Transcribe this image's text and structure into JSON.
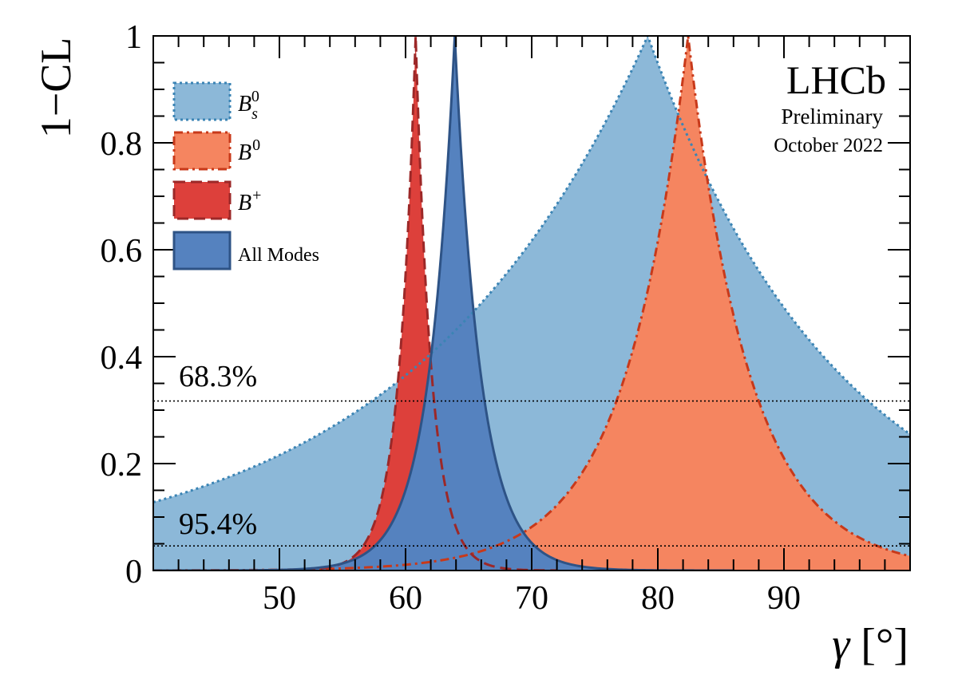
{
  "chart_data": {
    "type": "area",
    "title": "",
    "xlabel_symbol": "γ",
    "xlabel_unit": "[°]",
    "ylabel": "1−CL",
    "xlim": [
      40,
      100
    ],
    "ylim": [
      0,
      1
    ],
    "xticks": [
      50,
      60,
      70,
      80,
      90
    ],
    "yticks": [
      0,
      0.2,
      0.4,
      0.6,
      0.8,
      1
    ],
    "ytick_labels": [
      "0",
      "0.2",
      "0.4",
      "0.6",
      "0.8",
      "1"
    ],
    "xtick_labels": [
      "50",
      "60",
      "70",
      "80",
      "90"
    ],
    "reference_lines": [
      {
        "label": "68.3%",
        "y": 0.317
      },
      {
        "label": "95.4%",
        "y": 0.046
      }
    ],
    "watermark": {
      "experiment": "LHCb",
      "status": "Preliminary",
      "date": "October 2022"
    },
    "series": [
      {
        "name": "B_s^0",
        "legend_base": "B",
        "legend_sub": "s",
        "legend_sup": "0",
        "fill": "#8cb8d8",
        "stroke": "#3b84b4",
        "dash": "dotted",
        "center": 79.2,
        "k_left": 0.0525,
        "k_right": 0.0657,
        "x_range": [
          40,
          100
        ]
      },
      {
        "name": "B^0",
        "legend_base": "B",
        "legend_sub": "",
        "legend_sup": "0",
        "fill": "#f58560",
        "stroke": "#c8391a",
        "dash": "dashdot",
        "center": 82.4,
        "k_left": 0.2022,
        "k_right": 0.2053,
        "x_range": [
          40,
          100
        ]
      },
      {
        "name": "B^+",
        "legend_base": "B",
        "legend_sub": "",
        "legend_sup": "+",
        "fill": "#dd403b",
        "stroke": "#9c2828",
        "dash": "dashed",
        "center": 60.8,
        "k_left": 0.741,
        "k_right": 0.787,
        "x_range": [
          40,
          72
        ]
      },
      {
        "name": "All Modes",
        "legend_text": "All Modes",
        "fill": "#5582bf",
        "stroke": "#2e5386",
        "dash": "solid",
        "center": 63.9,
        "k_left": 0.486,
        "k_right": 0.486,
        "x_range": [
          40,
          86
        ]
      }
    ]
  }
}
